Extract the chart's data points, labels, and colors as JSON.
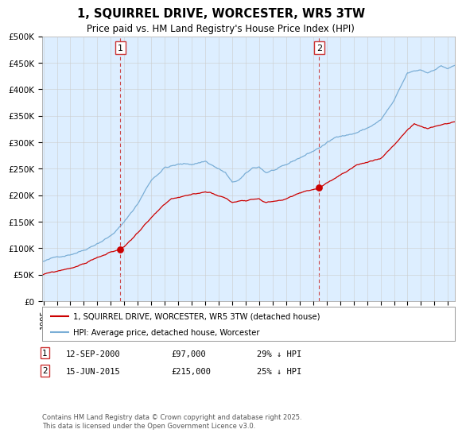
{
  "title": "1, SQUIRREL DRIVE, WORCESTER, WR5 3TW",
  "subtitle": "Price paid vs. HM Land Registry's House Price Index (HPI)",
  "ylabel_ticks": [
    "£0",
    "£50K",
    "£100K",
    "£150K",
    "£200K",
    "£250K",
    "£300K",
    "£350K",
    "£400K",
    "£450K",
    "£500K"
  ],
  "ytick_values": [
    0,
    50000,
    100000,
    150000,
    200000,
    250000,
    300000,
    350000,
    400000,
    450000,
    500000
  ],
  "ylim": [
    0,
    500000
  ],
  "x_start_year": 1995,
  "x_end_year": 2025,
  "red_line_color": "#cc0000",
  "blue_line_color": "#7aaed6",
  "chart_bg_color": "#ddeeff",
  "transaction1_year": 2000.71,
  "transaction1_price": 97000,
  "transaction2_year": 2015.45,
  "transaction2_price": 215000,
  "vline_color": "#cc4444",
  "legend_red": "1, SQUIRREL DRIVE, WORCESTER, WR5 3TW (detached house)",
  "legend_blue": "HPI: Average price, detached house, Worcester",
  "footer": "Contains HM Land Registry data © Crown copyright and database right 2025.\nThis data is licensed under the Open Government Licence v3.0.",
  "background_color": "#ffffff",
  "grid_color": "#cccccc",
  "label1_text": "1",
  "label2_text": "2",
  "table1_date": "12-SEP-2000",
  "table1_price": "£97,000",
  "table1_hpi": "29% ↓ HPI",
  "table2_date": "15-JUN-2015",
  "table2_price": "£215,000",
  "table2_hpi": "25% ↓ HPI"
}
